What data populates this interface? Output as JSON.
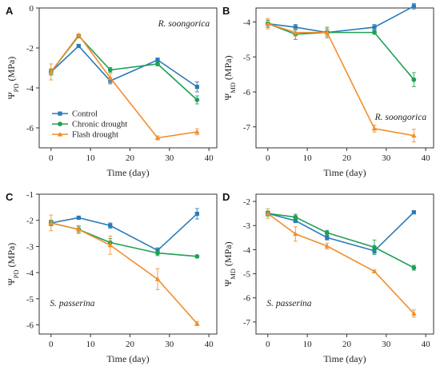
{
  "series_styles": [
    {
      "name": "Control",
      "color": "#2a7ab9",
      "marker": "square"
    },
    {
      "name": "Chronic drought",
      "color": "#1fa055",
      "marker": "circle"
    },
    {
      "name": "Flash drought",
      "color": "#f28e2b",
      "marker": "triangle"
    }
  ],
  "chart_data": [
    {
      "panel": "A",
      "type": "line",
      "title": "",
      "species": "R. soongorica",
      "ylabel_base": "Ψ",
      "ylabel_sub": "PD",
      "ylabel_unit": " (MPa)",
      "xlabel": "Time (day)",
      "xlim": [
        -3,
        42
      ],
      "ylim": [
        -7,
        0
      ],
      "xticks": [
        0,
        10,
        20,
        30,
        40
      ],
      "yticks": [
        0,
        -2,
        -4,
        -6
      ],
      "legend": true,
      "series": [
        {
          "name": "Control",
          "x": [
            0,
            7,
            15,
            27,
            37
          ],
          "y": [
            -3.2,
            -1.9,
            -3.65,
            -2.6,
            -3.95
          ],
          "err": [
            0.15,
            0.05,
            0.15,
            0.1,
            0.25
          ]
        },
        {
          "name": "Chronic drought",
          "x": [
            0,
            7,
            15,
            27,
            37
          ],
          "y": [
            -3.2,
            -1.4,
            -3.1,
            -2.8,
            -4.6
          ],
          "err": [
            0.15,
            0.08,
            0.12,
            0.1,
            0.2
          ]
        },
        {
          "name": "Flash drought",
          "x": [
            0,
            7,
            15,
            27,
            37
          ],
          "y": [
            -3.2,
            -1.35,
            -3.5,
            -6.5,
            -6.2
          ],
          "err": [
            0.4,
            0.05,
            0.2,
            0.1,
            0.15
          ]
        }
      ]
    },
    {
      "panel": "B",
      "type": "line",
      "title": "",
      "species": "R. soongorica",
      "ylabel_base": "Ψ",
      "ylabel_sub": "MD",
      "ylabel_unit": " (MPa)",
      "xlabel": "Time (day)",
      "xlim": [
        -3,
        42
      ],
      "ylim": [
        -7.6,
        -3.6
      ],
      "xticks": [
        0,
        10,
        20,
        30,
        40
      ],
      "yticks": [
        -4,
        -5,
        -6,
        -7
      ],
      "legend": false,
      "series": [
        {
          "name": "Control",
          "x": [
            0,
            7,
            15,
            27,
            37
          ],
          "y": [
            -4.05,
            -4.15,
            -4.3,
            -4.15,
            -3.55
          ],
          "err": [
            0.1,
            0.08,
            0.1,
            0.08,
            0.08
          ]
        },
        {
          "name": "Chronic drought",
          "x": [
            0,
            7,
            15,
            27,
            37
          ],
          "y": [
            -4.05,
            -4.35,
            -4.3,
            -4.3,
            -5.65
          ],
          "err": [
            0.1,
            0.15,
            0.15,
            0.05,
            0.2
          ]
        },
        {
          "name": "Flash drought",
          "x": [
            0,
            7,
            15,
            27,
            37
          ],
          "y": [
            -4.05,
            -4.3,
            -4.3,
            -7.05,
            -7.25
          ],
          "err": [
            0.15,
            0.1,
            0.1,
            0.1,
            0.18
          ]
        }
      ]
    },
    {
      "panel": "C",
      "type": "line",
      "title": "",
      "species": "S. passerina",
      "ylabel_base": "Ψ",
      "ylabel_sub": "PD",
      "ylabel_unit": " (MPa)",
      "xlabel": "Time (day)",
      "xlim": [
        -3,
        42
      ],
      "ylim": [
        -6.35,
        -1
      ],
      "xticks": [
        0,
        10,
        20,
        30,
        40
      ],
      "yticks": [
        -1,
        -2,
        -3,
        -4,
        -5,
        -6
      ],
      "legend": false,
      "series": [
        {
          "name": "Control",
          "x": [
            0,
            7,
            15,
            27,
            37
          ],
          "y": [
            -2.1,
            -1.9,
            -2.2,
            -3.15,
            -1.75
          ],
          "err": [
            0.1,
            0.05,
            0.1,
            0.1,
            0.2
          ]
        },
        {
          "name": "Chronic drought",
          "x": [
            0,
            7,
            15,
            27,
            37
          ],
          "y": [
            -2.1,
            -2.35,
            -2.85,
            -3.25,
            -3.38
          ],
          "err": [
            0.1,
            0.12,
            0.15,
            0.1,
            0.05
          ]
        },
        {
          "name": "Flash drought",
          "x": [
            0,
            7,
            15,
            27,
            37
          ],
          "y": [
            -2.1,
            -2.35,
            -2.95,
            -4.25,
            -5.95
          ],
          "err": [
            0.3,
            0.15,
            0.35,
            0.4,
            0.08
          ]
        }
      ]
    },
    {
      "panel": "D",
      "type": "line",
      "title": "",
      "species": "S. passerina",
      "ylabel_base": "Ψ",
      "ylabel_sub": "MD",
      "ylabel_unit": " (MPa)",
      "xlabel": "Time (day)",
      "xlim": [
        -3,
        42
      ],
      "ylim": [
        -7.5,
        -1.7
      ],
      "xticks": [
        0,
        10,
        20,
        30,
        40
      ],
      "yticks": [
        -2,
        -3,
        -4,
        -5,
        -6,
        -7
      ],
      "legend": false,
      "series": [
        {
          "name": "Control",
          "x": [
            0,
            7,
            15,
            27,
            37
          ],
          "y": [
            -2.5,
            -2.8,
            -3.5,
            -4.05,
            -2.45
          ],
          "err": [
            0.1,
            0.08,
            0.1,
            0.1,
            0.05
          ]
        },
        {
          "name": "Chronic drought",
          "x": [
            0,
            7,
            15,
            27,
            37
          ],
          "y": [
            -2.5,
            -2.65,
            -3.3,
            -3.9,
            -4.75
          ],
          "err": [
            0.1,
            0.12,
            0.1,
            0.3,
            0.1
          ]
        },
        {
          "name": "Flash drought",
          "x": [
            0,
            7,
            15,
            27,
            37
          ],
          "y": [
            -2.5,
            -3.35,
            -3.85,
            -4.9,
            -6.65
          ],
          "err": [
            0.2,
            0.3,
            0.12,
            0.05,
            0.15
          ]
        }
      ]
    }
  ]
}
